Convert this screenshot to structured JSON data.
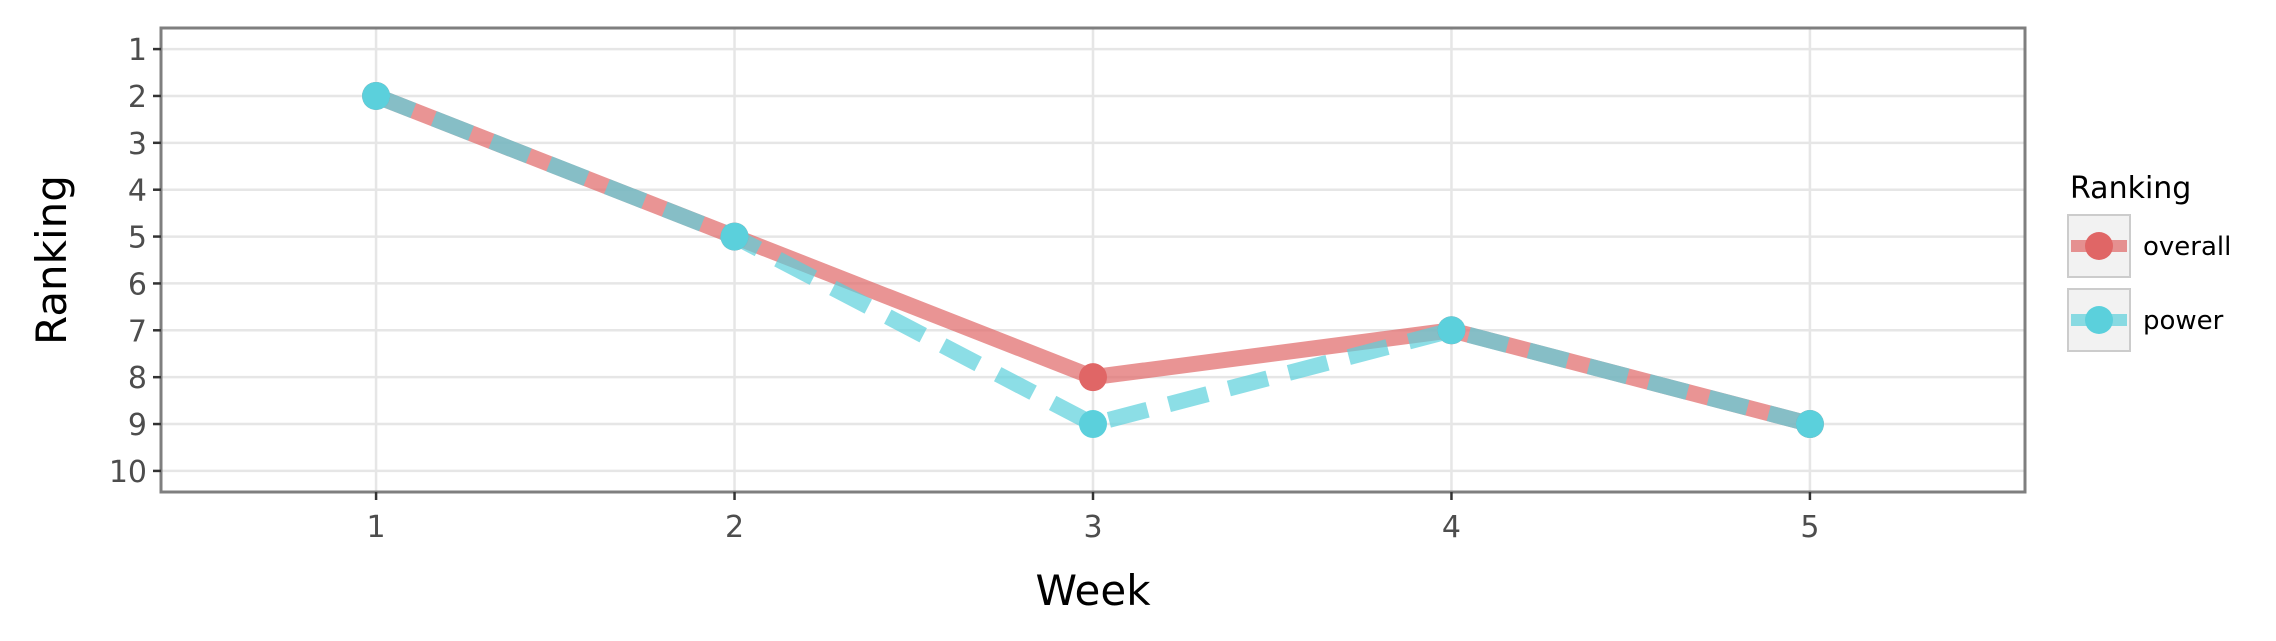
{
  "chart_data": {
    "type": "line",
    "title": "",
    "xlabel": "Week",
    "ylabel": "Ranking",
    "x": [
      1,
      2,
      3,
      4,
      5
    ],
    "x_ticks": [
      "1",
      "2",
      "3",
      "4",
      "5"
    ],
    "y_ticks": [
      "1",
      "2",
      "3",
      "4",
      "5",
      "6",
      "7",
      "8",
      "9",
      "10"
    ],
    "xlim": [
      0.4,
      5.6
    ],
    "ylim": [
      10.45,
      0.55
    ],
    "y_reversed": true,
    "grid": true,
    "legend": {
      "title": "Ranking",
      "position": "right"
    },
    "series": [
      {
        "name": "overall",
        "values": [
          2,
          5,
          8,
          7,
          9
        ],
        "color": "#e06666",
        "line_style": "solid"
      },
      {
        "name": "power",
        "values": [
          2,
          5,
          9,
          7,
          9
        ],
        "color": "#5bd0dc",
        "line_style": "dashed"
      }
    ]
  }
}
